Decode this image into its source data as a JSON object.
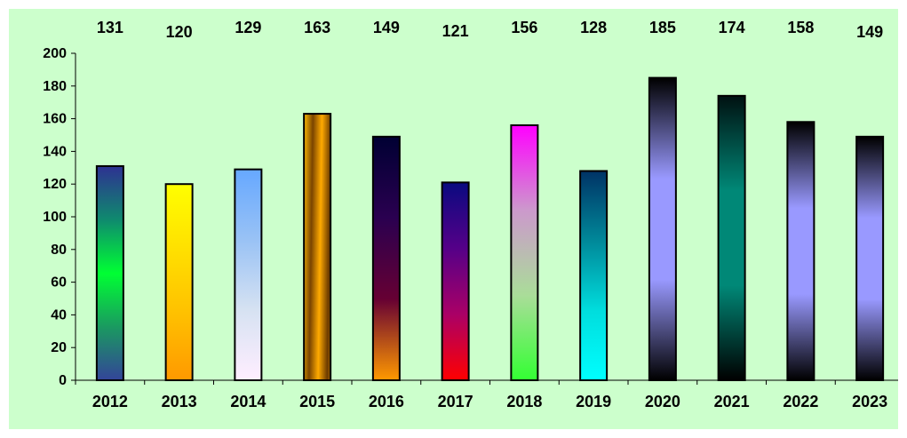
{
  "chart_data": {
    "type": "bar",
    "categories": [
      "2012",
      "2013",
      "2014",
      "2015",
      "2016",
      "2017",
      "2018",
      "2019",
      "2020",
      "2021",
      "2022",
      "2023"
    ],
    "values": [
      131,
      120,
      129,
      163,
      149,
      121,
      156,
      128,
      185,
      174,
      158,
      149
    ],
    "data_labels": [
      "131",
      "120",
      "129",
      "163",
      "149",
      "121",
      "156",
      "128",
      "185",
      "174",
      "158",
      "149"
    ],
    "ylim": [
      0,
      200
    ],
    "y_ticks": [
      "0",
      "20",
      "40",
      "60",
      "80",
      "100",
      "120",
      "140",
      "160",
      "180",
      "200"
    ],
    "grid": false,
    "legend": "none",
    "background_color": "#ccffcc",
    "bar_gradients": [
      [
        "#2e3192",
        "#0f8a6e",
        "#00ff33",
        "#1a9a60",
        "#334499"
      ],
      [
        "#ffff00",
        "#ffe000",
        "#ffc000",
        "#ff9900"
      ],
      [
        "#66a8ff",
        "#99c2f5",
        "#d6e2f2",
        "#ffeeff"
      ],
      [
        "#ffbb00",
        "#7a4400",
        "#ffaa00",
        "#6b3a00"
      ],
      [
        "#000033",
        "#2a0050",
        "#660033",
        "#ff9900"
      ],
      [
        "#0a0a80",
        "#550088",
        "#aa0066",
        "#ff0000"
      ],
      [
        "#ff00ff",
        "#cc99cc",
        "#aadd99",
        "#33ff33"
      ],
      [
        "#003366",
        "#008899",
        "#00dddd",
        "#00ffff"
      ],
      [
        "#000000",
        "#9999ff",
        "#9999ff",
        "#000000"
      ],
      [
        "#001111",
        "#008877",
        "#008877",
        "#000000"
      ],
      [
        "#000000",
        "#9999ff",
        "#9999ff",
        "#000000"
      ],
      [
        "#000000",
        "#9999ff",
        "#9999ff",
        "#000000"
      ]
    ]
  }
}
